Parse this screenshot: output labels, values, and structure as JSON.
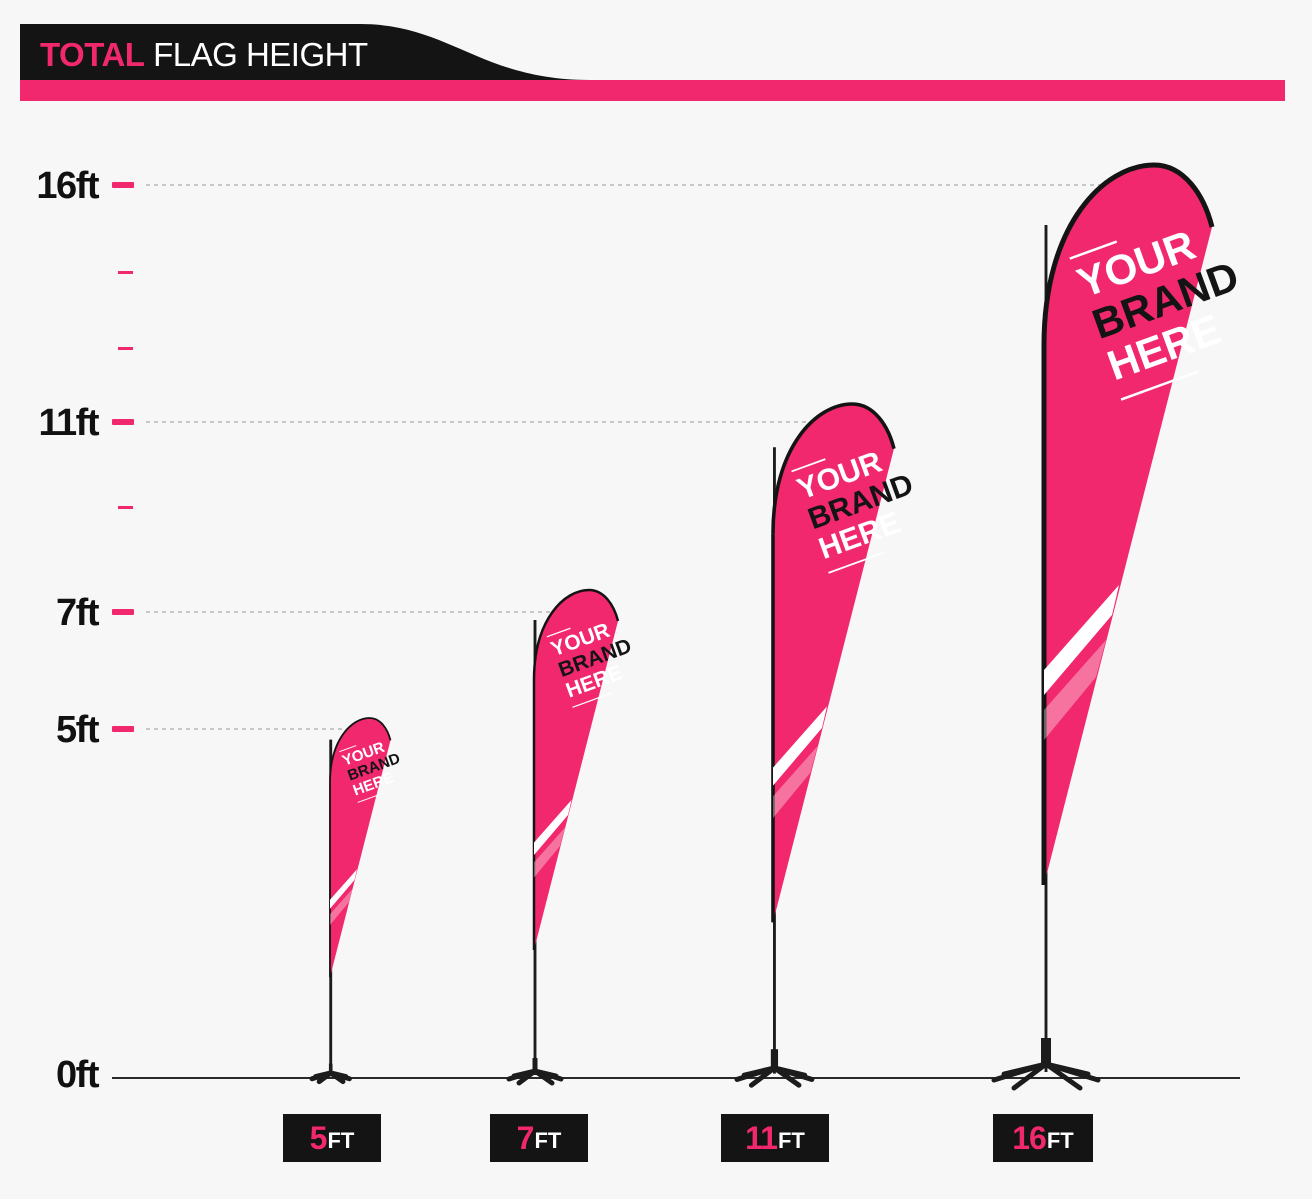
{
  "header": {
    "title_highlight": "TOTAL",
    "title_rest": "FLAG HEIGHT"
  },
  "axis": {
    "labels": [
      "16ft",
      "11ft",
      "7ft",
      "5ft",
      "0ft"
    ]
  },
  "flags": [
    {
      "height": 5,
      "value": "5",
      "unit": "FT",
      "line1": "YOUR",
      "line2": "BRAND",
      "line3": "HERE"
    },
    {
      "height": 7,
      "value": "7",
      "unit": "FT",
      "line1": "YOUR",
      "line2": "BRAND",
      "line3": "HERE"
    },
    {
      "height": 11,
      "value": "11",
      "unit": "FT",
      "line1": "YOUR",
      "line2": "BRAND",
      "line3": "HERE"
    },
    {
      "height": 16,
      "value": "16",
      "unit": "FT",
      "line1": "YOUR",
      "line2": "BRAND",
      "line3": "HERE"
    }
  ],
  "colors": {
    "accent": "#f2286e",
    "dark": "#141414",
    "background": "#f7f7f7"
  }
}
